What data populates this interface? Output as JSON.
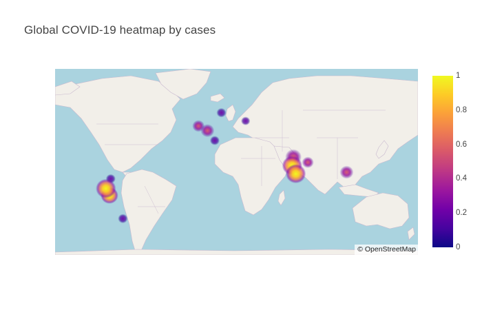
{
  "title": "Global COVID-19 heatmap by cases",
  "map": {
    "attribution": "© OpenStreetMap",
    "ocean_color": "#aad3df",
    "land_color": "#f2efe9",
    "hotspots": [
      {
        "name": "uk",
        "lon": -1.5,
        "lat": 52.5,
        "intensity": 0.4
      },
      {
        "name": "france-germany",
        "lon": 6,
        "lat": 49.5,
        "intensity": 0.5
      },
      {
        "name": "italy",
        "lon": 12,
        "lat": 42.5,
        "intensity": 0.2
      },
      {
        "name": "sweden",
        "lon": 17.5,
        "lat": 60,
        "intensity": 0.2
      },
      {
        "name": "moscow",
        "lon": 37.5,
        "lat": 55.5,
        "intensity": 0.15
      },
      {
        "name": "north-india",
        "lon": 77,
        "lat": 29,
        "intensity": 0.7
      },
      {
        "name": "central-india",
        "lon": 76,
        "lat": 21,
        "intensity": 1.0
      },
      {
        "name": "south-india",
        "lon": 79,
        "lat": 13,
        "intensity": 1.0
      },
      {
        "name": "bangladesh",
        "lon": 89,
        "lat": 24,
        "intensity": 0.35
      },
      {
        "name": "philippines",
        "lon": 121,
        "lat": 14.5,
        "intensity": 0.5
      },
      {
        "name": "colombia",
        "lon": -74,
        "lat": 8,
        "intensity": 0.2
      },
      {
        "name": "ecuador-peru",
        "lon": -78,
        "lat": -2,
        "intensity": 1.0
      },
      {
        "name": "peru",
        "lon": -75,
        "lat": -9,
        "intensity": 0.8
      },
      {
        "name": "argentina",
        "lon": -64,
        "lat": -31,
        "intensity": 0.2
      }
    ]
  },
  "colorbar": {
    "ticks": [
      "1",
      "0.8",
      "0.6",
      "0.4",
      "0.2",
      "0"
    ],
    "colorscale": "Plasma"
  }
}
